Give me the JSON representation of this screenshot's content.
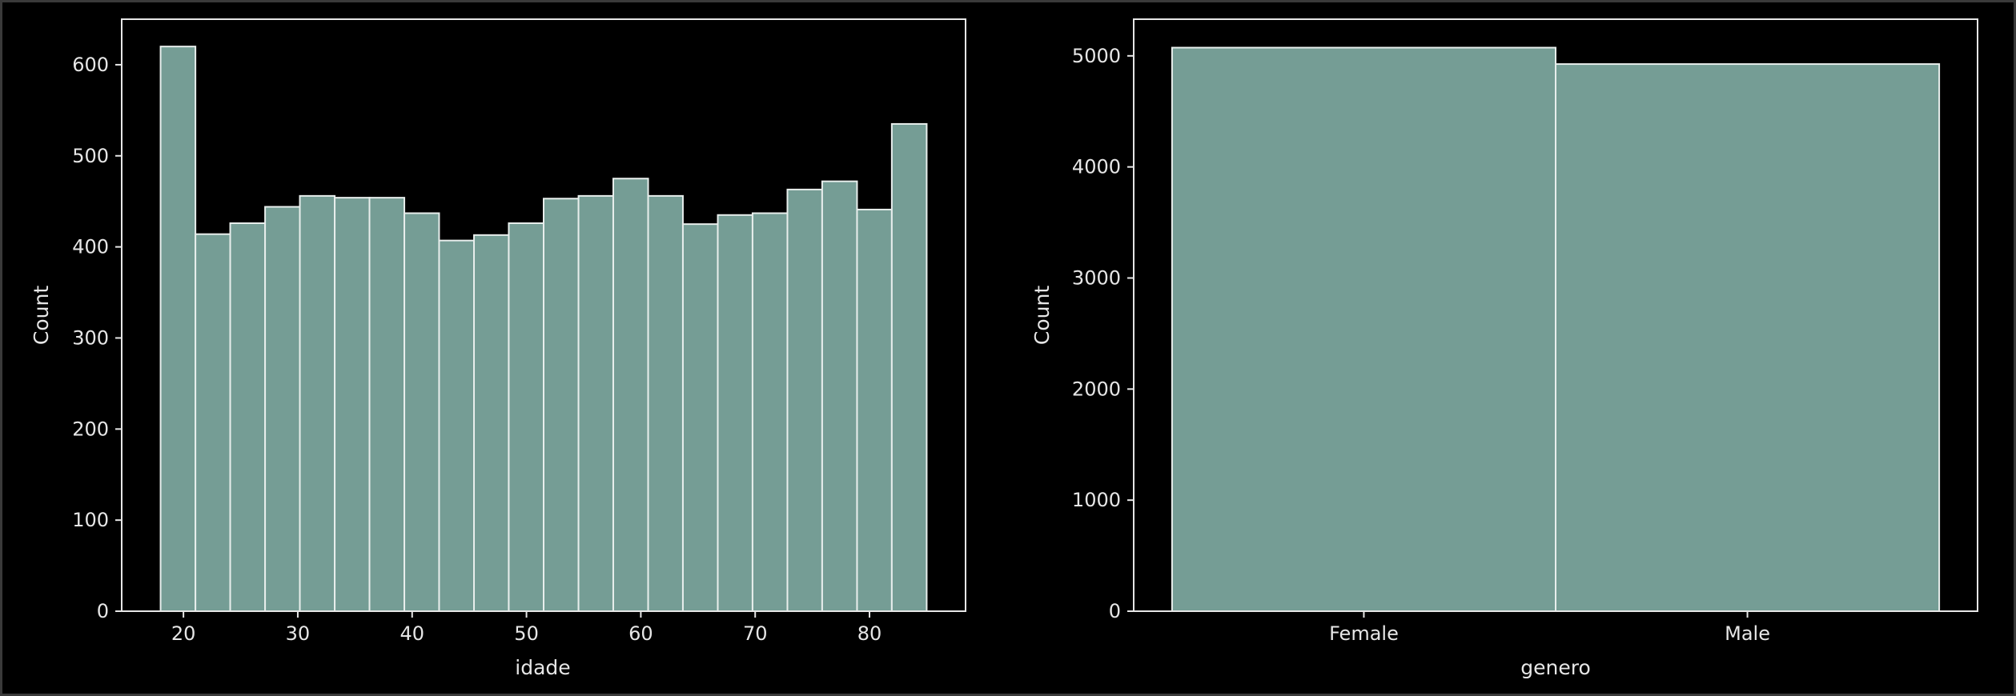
{
  "colors": {
    "background": "#000000",
    "bar_fill": "#759d95",
    "bar_edge": "#e8eeec",
    "text": "#e6e6e6"
  },
  "chart_data": [
    {
      "type": "bar",
      "subtype": "histogram",
      "xlabel": "idade",
      "ylabel": "Count",
      "xlim": [
        14.6,
        88.4
      ],
      "ylim": [
        0,
        650
      ],
      "xticks": [
        20,
        30,
        40,
        50,
        60,
        70,
        80
      ],
      "yticks": [
        0,
        100,
        200,
        300,
        400,
        500,
        600
      ],
      "bin_edges": [
        18,
        21.05,
        24.09,
        27.14,
        30.18,
        33.23,
        36.27,
        39.32,
        42.36,
        45.41,
        48.45,
        51.5,
        54.55,
        57.59,
        60.64,
        63.68,
        66.73,
        69.77,
        72.82,
        75.86,
        78.91,
        81.95,
        85
      ],
      "values": [
        620,
        414,
        426,
        444,
        456,
        454,
        454,
        437,
        407,
        413,
        426,
        453,
        456,
        475,
        456,
        425,
        435,
        437,
        463,
        472,
        441,
        535
      ],
      "grid": false,
      "legend": "none"
    },
    {
      "type": "bar",
      "xlabel": "genero",
      "ylabel": "Count",
      "categories": [
        "Female",
        "Male"
      ],
      "values": [
        5074,
        4926
      ],
      "ylim": [
        0,
        5330
      ],
      "yticks": [
        0,
        1000,
        2000,
        3000,
        4000,
        5000
      ],
      "grid": false,
      "legend": "none"
    }
  ]
}
